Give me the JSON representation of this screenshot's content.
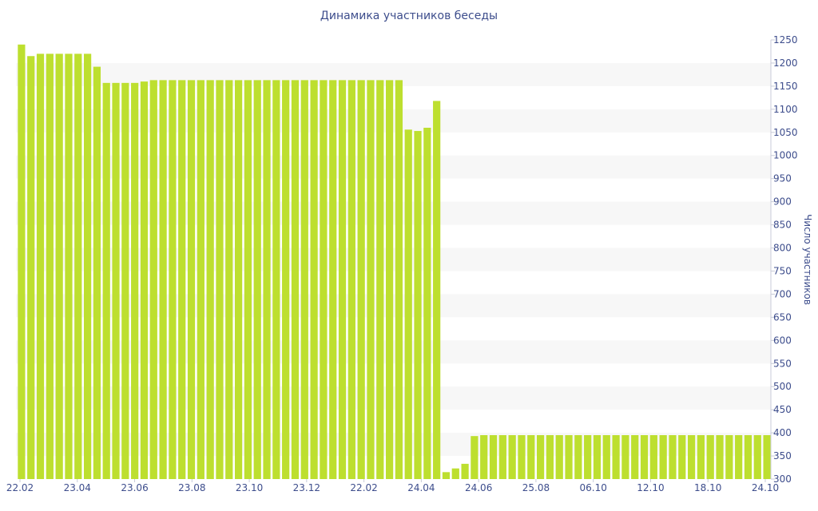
{
  "chart_data": {
    "type": "bar",
    "title": "Динамика участников беседы",
    "ylabel": "Число участников",
    "xlabel": "",
    "ylim": [
      300,
      1250
    ],
    "yticks": [
      300,
      350,
      400,
      450,
      500,
      550,
      600,
      650,
      700,
      750,
      800,
      850,
      900,
      950,
      1000,
      1050,
      1100,
      1150,
      1200,
      1250
    ],
    "x_tick_labels": [
      "22.02",
      "23.04",
      "23.06",
      "23.08",
      "23.10",
      "23.12",
      "22.02",
      "24.04",
      "24.06",
      "25.08",
      "06.10",
      "12.10",
      "18.10",
      "24.10"
    ],
    "values": [
      1240,
      1215,
      1220,
      1220,
      1220,
      1220,
      1220,
      1220,
      1192,
      1157,
      1157,
      1157,
      1157,
      1160,
      1163,
      1163,
      1163,
      1163,
      1163,
      1163,
      1163,
      1163,
      1163,
      1163,
      1163,
      1163,
      1163,
      1163,
      1163,
      1163,
      1163,
      1163,
      1163,
      1163,
      1163,
      1163,
      1163,
      1163,
      1163,
      1163,
      1163,
      1056,
      1053,
      1060,
      1118,
      315,
      323,
      333,
      393,
      395,
      395,
      395,
      395,
      395,
      395,
      395,
      395,
      395,
      395,
      395,
      395,
      395,
      395,
      395,
      395,
      395,
      395,
      395,
      395,
      395,
      395,
      395,
      395,
      395,
      395,
      395,
      395,
      395,
      395,
      395
    ],
    "bar_color": "#bddf2f",
    "grid_band_color": "#f7f7f7",
    "text_color": "#3d4d8c",
    "grid": "alternating-bands",
    "y_axis_position": "right"
  }
}
